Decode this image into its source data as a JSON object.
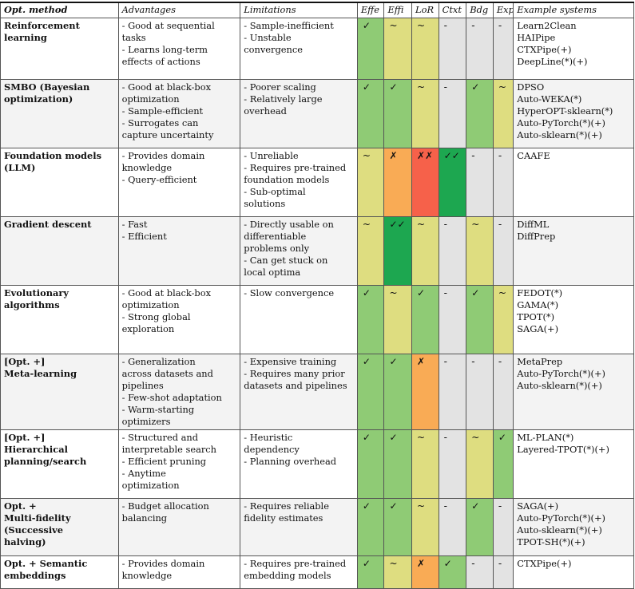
{
  "headers": [
    "Opt. method",
    "Advantages",
    "Limitations",
    "Effe",
    "Effi",
    "LoR",
    "Ctxt",
    "Bdg",
    "Exp",
    "Example systems"
  ],
  "colors": {
    "green": "#8fcb75",
    "dark_green": "#1da750",
    "yellow": "#dedd80",
    "orange": "#f9ab55",
    "red": "#f6614a",
    "gray": "#e3e3e3"
  },
  "rows": [
    {
      "method": [
        "Reinforcement",
        "learning"
      ],
      "advantages": [
        "- Good at sequential",
        "tasks",
        "- Learns long-term",
        "effects of actions"
      ],
      "limitations": [
        "- Sample-inefficient",
        "- Unstable",
        "convergence"
      ],
      "cells": [
        [
          "✓",
          "green"
        ],
        [
          "~",
          "yellow"
        ],
        [
          "~",
          "yellow"
        ],
        [
          "-",
          "gray"
        ],
        [
          "-",
          "gray"
        ],
        [
          "-",
          "gray"
        ]
      ],
      "examples": [
        "Learn2Clean",
        "HAIPipe",
        "CTXPipe(+)",
        "DeepLine(*)(+)"
      ]
    },
    {
      "method": [
        "SMBO (Bayesian",
        "optimization)"
      ],
      "advantages": [
        "- Good at black-box",
        "optimization",
        "- Sample-efficient",
        "- Surrogates can",
        "capture uncertainty"
      ],
      "limitations": [
        "- Poorer scaling",
        "- Relatively large",
        "overhead"
      ],
      "cells": [
        [
          "✓",
          "green"
        ],
        [
          "✓",
          "green"
        ],
        [
          "~",
          "yellow"
        ],
        [
          "-",
          "gray"
        ],
        [
          "✓",
          "green"
        ],
        [
          "~",
          "yellow"
        ]
      ],
      "examples": [
        "DPSO",
        "Auto-WEKA(*)",
        "HyperOPT-sklearn(*)",
        "Auto-PyTorch(*)(+)",
        "Auto-sklearn(*)(+)"
      ]
    },
    {
      "method": [
        "Foundation models",
        "(LLM)"
      ],
      "advantages": [
        "- Provides domain",
        "knowledge",
        "- Query-efficient"
      ],
      "limitations": [
        "- Unreliable",
        "- Requires pre-trained",
        "foundation models",
        "- Sub-optimal",
        "solutions"
      ],
      "cells": [
        [
          "~",
          "yellow"
        ],
        [
          "✗",
          "orange"
        ],
        [
          "✗✗",
          "red"
        ],
        [
          "✓✓",
          "dark_green"
        ],
        [
          "-",
          "gray"
        ],
        [
          "-",
          "gray"
        ]
      ],
      "examples": [
        "CAAFE"
      ]
    },
    {
      "method": [
        "Gradient descent"
      ],
      "advantages": [
        "- Fast",
        "- Efficient"
      ],
      "limitations": [
        "- Directly usable on",
        "differentiable",
        "problems only",
        "- Can get stuck on",
        "local optima"
      ],
      "cells": [
        [
          "~",
          "yellow"
        ],
        [
          "✓✓",
          "dark_green"
        ],
        [
          "~",
          "yellow"
        ],
        [
          "-",
          "gray"
        ],
        [
          "~",
          "yellow"
        ],
        [
          "-",
          "gray"
        ]
      ],
      "examples": [
        "DiffML",
        "DiffPrep"
      ]
    },
    {
      "method": [
        "Evolutionary",
        "algorithms"
      ],
      "advantages": [
        "- Good at black-box",
        "optimization",
        "- Strong global",
        "exploration"
      ],
      "limitations": [
        "- Slow convergence"
      ],
      "cells": [
        [
          "✓",
          "green"
        ],
        [
          "~",
          "yellow"
        ],
        [
          "✓",
          "green"
        ],
        [
          "-",
          "gray"
        ],
        [
          "✓",
          "green"
        ],
        [
          "~",
          "yellow"
        ]
      ],
      "examples": [
        "FEDOT(*)",
        "GAMA(*)",
        "TPOT(*)",
        "SAGA(+)"
      ]
    },
    {
      "method": [
        "[Opt. +]",
        "Meta-learning"
      ],
      "advantages": [
        "- Generalization",
        "across datasets and",
        "pipelines",
        "- Few-shot adaptation",
        "- Warm-starting",
        "optimizers"
      ],
      "limitations": [
        "- Expensive training",
        "- Requires many prior",
        "datasets and pipelines"
      ],
      "cells": [
        [
          "✓",
          "green"
        ],
        [
          "✓",
          "green"
        ],
        [
          "✗",
          "orange"
        ],
        [
          "-",
          "gray"
        ],
        [
          "-",
          "gray"
        ],
        [
          "-",
          "gray"
        ]
      ],
      "examples": [
        "MetaPrep",
        "Auto-PyTorch(*)(+)",
        "Auto-sklearn(*)(+)"
      ]
    },
    {
      "method": [
        "[Opt. +]",
        "Hierarchical",
        "planning/search"
      ],
      "advantages": [
        "- Structured and",
        "interpretable search",
        "- Efficient pruning",
        "- Anytime",
        "optimization"
      ],
      "limitations": [
        "- Heuristic",
        "dependency",
        "- Planning overhead"
      ],
      "cells": [
        [
          "✓",
          "green"
        ],
        [
          "✓",
          "green"
        ],
        [
          "~",
          "yellow"
        ],
        [
          "-",
          "gray"
        ],
        [
          "~",
          "yellow"
        ],
        [
          "✓",
          "green"
        ]
      ],
      "examples": [
        "ML-PLAN(*)",
        "Layered-TPOT(*)(+)"
      ]
    },
    {
      "method": [
        "Opt. +",
        "Multi-fidelity",
        "(Successive",
        "halving)"
      ],
      "advantages": [
        "- Budget allocation",
        "balancing"
      ],
      "limitations": [
        "- Requires reliable",
        "fidelity estimates"
      ],
      "cells": [
        [
          "✓",
          "green"
        ],
        [
          "✓",
          "green"
        ],
        [
          "~",
          "yellow"
        ],
        [
          "-",
          "gray"
        ],
        [
          "✓",
          "green"
        ],
        [
          "-",
          "gray"
        ]
      ],
      "examples": [
        "SAGA(+)",
        "Auto-PyTorch(*)(+)",
        "Auto-sklearn(*)(+)",
        "TPOT-SH(*)(+)"
      ]
    },
    {
      "method": [
        "Opt. + Semantic",
        "embeddings"
      ],
      "advantages": [
        "- Provides domain",
        "knowledge"
      ],
      "limitations": [
        "- Requires pre-trained",
        "embedding models"
      ],
      "cells": [
        [
          "✓",
          "green"
        ],
        [
          "~",
          "yellow"
        ],
        [
          "✗",
          "orange"
        ],
        [
          "✓",
          "green"
        ],
        [
          "-",
          "gray"
        ],
        [
          "-",
          "gray"
        ]
      ],
      "examples": [
        "CTXPipe(+)"
      ]
    }
  ]
}
